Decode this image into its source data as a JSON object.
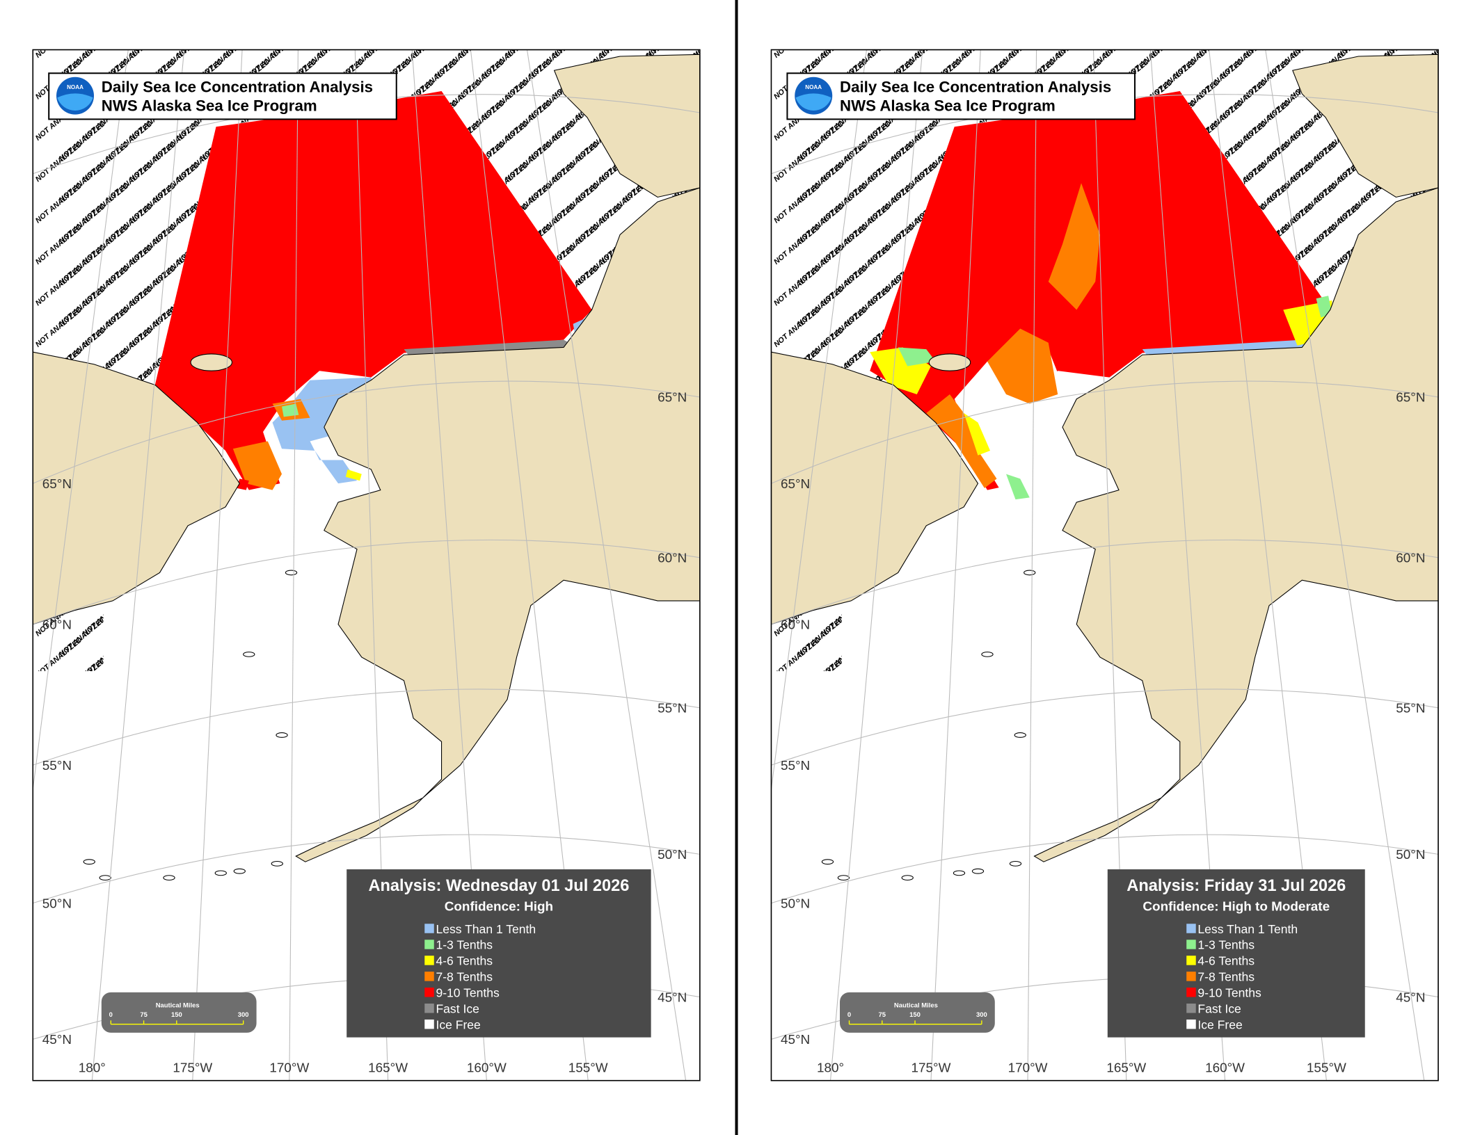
{
  "panels": [
    {
      "header": {
        "title": "Daily Sea Ice Concentration Analysis",
        "subtitle": "NWS Alaska Sea Ice Program",
        "logo": "NOAA"
      },
      "analysis": "Analysis: Wednesday 01 Jul 2026",
      "confidence": "Confidence: High",
      "legend": [
        {
          "label": "Less Than 1 Tenth",
          "color": "#99c2f2"
        },
        {
          "label": "1-3 Tenths",
          "color": "#8ef08e"
        },
        {
          "label": "4-6 Tenths",
          "color": "#ffff00"
        },
        {
          "label": "7-8 Tenths",
          "color": "#ff7f00"
        },
        {
          "label": "9-10 Tenths",
          "color": "#ff0000"
        },
        {
          "label": "Fast Ice",
          "color": "#8c8c8c"
        },
        {
          "label": "Ice Free",
          "color": "#ffffff"
        }
      ],
      "scale": {
        "title": "Nautical Miles",
        "labels": [
          "0",
          "75",
          "150",
          "300"
        ]
      },
      "lat_labels_left": [
        "65°N",
        "60°N",
        "55°N",
        "50°N",
        "45°N"
      ],
      "lat_labels_right": [
        "65°N",
        "60°N",
        "55°N",
        "50°N",
        "45°N"
      ],
      "lon_labels": [
        "180°",
        "175°W",
        "170°W",
        "165°W",
        "160°W",
        "155°W"
      ],
      "not_analyzed": "NOT ANALYZED"
    },
    {
      "header": {
        "title": "Daily Sea Ice Concentration Analysis",
        "subtitle": "NWS Alaska Sea Ice Program",
        "logo": "NOAA"
      },
      "analysis": "Analysis: Friday 31 Jul 2026",
      "confidence": "Confidence: High to Moderate",
      "legend": [
        {
          "label": "Less Than 1 Tenth",
          "color": "#99c2f2"
        },
        {
          "label": "1-3 Tenths",
          "color": "#8ef08e"
        },
        {
          "label": "4-6 Tenths",
          "color": "#ffff00"
        },
        {
          "label": "7-8 Tenths",
          "color": "#ff7f00"
        },
        {
          "label": "9-10 Tenths",
          "color": "#ff0000"
        },
        {
          "label": "Fast Ice",
          "color": "#8c8c8c"
        },
        {
          "label": "Ice Free",
          "color": "#ffffff"
        }
      ],
      "scale": {
        "title": "Nautical Miles",
        "labels": [
          "0",
          "75",
          "150",
          "300"
        ]
      },
      "lat_labels_left": [
        "65°N",
        "60°N",
        "55°N",
        "50°N",
        "45°N"
      ],
      "lat_labels_right": [
        "65°N",
        "60°N",
        "55°N",
        "50°N",
        "45°N"
      ],
      "lon_labels": [
        "180°",
        "175°W",
        "170°W",
        "165°W",
        "160°W",
        "155°W"
      ],
      "not_analyzed": "NOT ANALYZED"
    }
  ]
}
